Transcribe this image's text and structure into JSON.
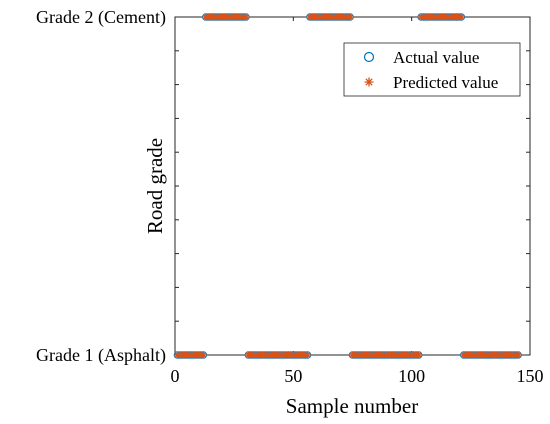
{
  "chart_data": {
    "type": "scatter",
    "xlabel": "Sample number",
    "ylabel": "Road grade",
    "xlim": [
      0,
      150
    ],
    "ylim": [
      1,
      2
    ],
    "xticks": [
      0,
      50,
      100,
      150
    ],
    "x_tick_labels": [
      "0",
      "50",
      "100",
      "150"
    ],
    "y_tick_labels": [
      "Grade 1 (Asphalt)",
      "Grade 2 (Cement)"
    ],
    "legend_position": "top-right",
    "grid": false,
    "colors": {
      "actual": "#0072BD",
      "predicted": "#D95319"
    },
    "series": [
      {
        "name": "Actual value",
        "marker": "circle",
        "segments": [
          {
            "x_start": 1,
            "x_end": 12,
            "y": 1
          },
          {
            "x_start": 13,
            "x_end": 30,
            "y": 2
          },
          {
            "x_start": 31,
            "x_end": 56,
            "y": 1
          },
          {
            "x_start": 57,
            "x_end": 74,
            "y": 2
          },
          {
            "x_start": 75,
            "x_end": 103,
            "y": 1
          },
          {
            "x_start": 104,
            "x_end": 121,
            "y": 2
          },
          {
            "x_start": 122,
            "x_end": 145,
            "y": 1
          }
        ]
      },
      {
        "name": "Predicted value",
        "marker": "asterisk",
        "segments": [
          {
            "x_start": 1,
            "x_end": 12,
            "y": 1
          },
          {
            "x_start": 13,
            "x_end": 30,
            "y": 2
          },
          {
            "x_start": 31,
            "x_end": 56,
            "y": 1
          },
          {
            "x_start": 57,
            "x_end": 74,
            "y": 2
          },
          {
            "x_start": 75,
            "x_end": 103,
            "y": 1
          },
          {
            "x_start": 104,
            "x_end": 121,
            "y": 2
          },
          {
            "x_start": 122,
            "x_end": 145,
            "y": 1
          }
        ]
      }
    ]
  }
}
